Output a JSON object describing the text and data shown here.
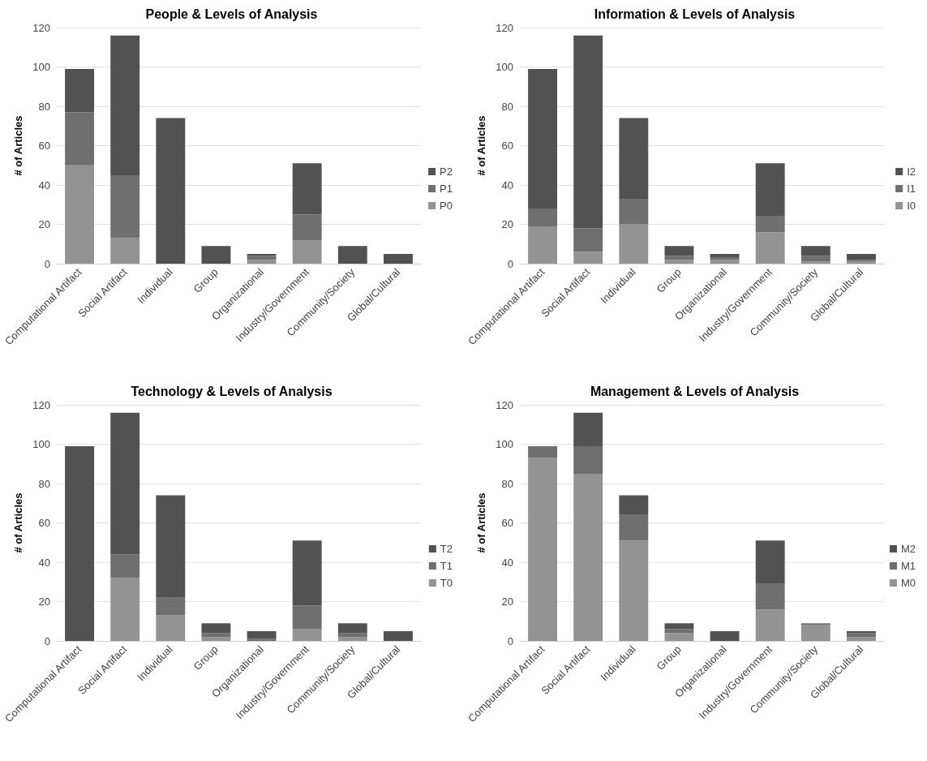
{
  "chart_data": [
    {
      "type": "bar",
      "title": "People & Levels of Analysis",
      "ylabel": "# of Articles",
      "categories": [
        "Computational Artifact",
        "Social Artifact",
        "Individual",
        "Group",
        "Organizational",
        "Industry/Government",
        "Community/Society",
        "Global/Cultural"
      ],
      "stacked": true,
      "ylim": [
        0,
        120
      ],
      "yticks": [
        0,
        20,
        40,
        60,
        80,
        100,
        120
      ],
      "grid": "y",
      "legend": "right",
      "series": [
        {
          "name": "P0",
          "color": "#939393",
          "values": [
            50,
            13,
            0,
            0,
            2,
            12,
            0,
            0
          ]
        },
        {
          "name": "P1",
          "color": "#6f6f6f",
          "values": [
            27,
            32,
            0,
            0,
            2,
            13,
            0,
            0
          ]
        },
        {
          "name": "P2",
          "color": "#525252",
          "values": [
            22,
            71,
            74,
            9,
            1,
            26,
            9,
            5
          ]
        }
      ]
    },
    {
      "type": "bar",
      "title": "Information & Levels of Analysis",
      "ylabel": "# of Articles",
      "categories": [
        "Computational Artifact",
        "Social Artifact",
        "Individual",
        "Group",
        "Organizational",
        "Industry/Government",
        "Community/Society",
        "Global/Cultural"
      ],
      "stacked": true,
      "ylim": [
        0,
        120
      ],
      "yticks": [
        0,
        20,
        40,
        60,
        80,
        100,
        120
      ],
      "grid": "y",
      "legend": "right",
      "series": [
        {
          "name": "I0",
          "color": "#939393",
          "values": [
            19,
            6,
            20,
            2,
            2,
            16,
            1,
            1
          ]
        },
        {
          "name": "I1",
          "color": "#6f6f6f",
          "values": [
            9,
            12,
            13,
            2,
            1,
            8,
            3,
            1
          ]
        },
        {
          "name": "I2",
          "color": "#525252",
          "values": [
            71,
            98,
            41,
            5,
            2,
            27,
            5,
            3
          ]
        }
      ]
    },
    {
      "type": "bar",
      "title": "Technology & Levels of Analysis",
      "ylabel": "# of Articles",
      "categories": [
        "Computational Artifact",
        "Social Artifact",
        "Individual",
        "Group",
        "Organizational",
        "Industry/Government",
        "Community/Society",
        "Global/Cultural"
      ],
      "stacked": true,
      "ylim": [
        0,
        120
      ],
      "yticks": [
        0,
        20,
        40,
        60,
        80,
        100,
        120
      ],
      "grid": "y",
      "legend": "right",
      "series": [
        {
          "name": "T0",
          "color": "#939393",
          "values": [
            0,
            32,
            13,
            2,
            0,
            6,
            2,
            0
          ]
        },
        {
          "name": "T1",
          "color": "#6f6f6f",
          "values": [
            0,
            12,
            9,
            2,
            1,
            12,
            2,
            0
          ]
        },
        {
          "name": "T2",
          "color": "#525252",
          "values": [
            99,
            72,
            52,
            5,
            4,
            33,
            5,
            5
          ]
        }
      ]
    },
    {
      "type": "bar",
      "title": "Management & Levels of Analysis",
      "ylabel": "# of Articles",
      "categories": [
        "Computational Artifact",
        "Social Artifact",
        "Individual",
        "Group",
        "Organizational",
        "Industry/Government",
        "Community/Society",
        "Global/Cultural"
      ],
      "stacked": true,
      "ylim": [
        0,
        120
      ],
      "yticks": [
        0,
        20,
        40,
        60,
        80,
        100,
        120
      ],
      "grid": "y",
      "legend": "right",
      "series": [
        {
          "name": "M0",
          "color": "#939393",
          "values": [
            93,
            85,
            51,
            4,
            0,
            16,
            8,
            2
          ]
        },
        {
          "name": "M1",
          "color": "#6f6f6f",
          "values": [
            6,
            14,
            13,
            2,
            0,
            13,
            1,
            2
          ]
        },
        {
          "name": "M2",
          "color": "#525252",
          "values": [
            0,
            17,
            10,
            3,
            5,
            22,
            0,
            1
          ]
        }
      ]
    }
  ]
}
